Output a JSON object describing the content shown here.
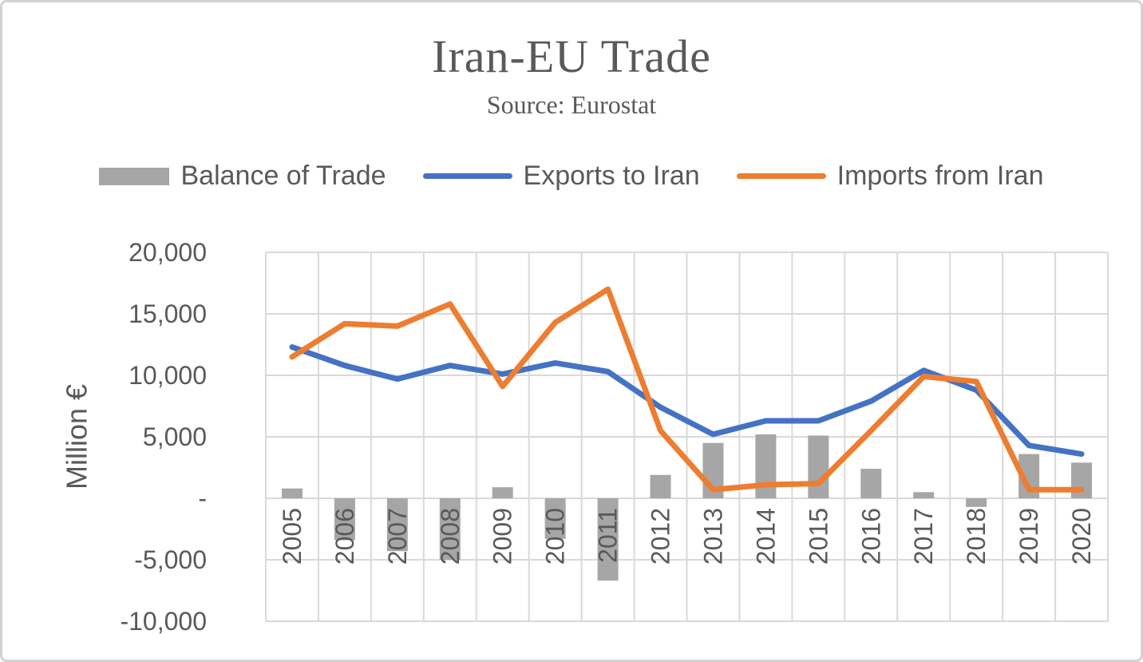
{
  "chart_data": {
    "type": "combo",
    "title": "Iran-EU Trade",
    "subtitle": "Source: Eurostat",
    "xlabel": "",
    "ylabel": "Million €",
    "ylim": [
      -10000,
      20000
    ],
    "grid": true,
    "legend_position": "top",
    "categories": [
      "2005",
      "2006",
      "2007",
      "2008",
      "2009",
      "2010",
      "2011",
      "2012",
      "2013",
      "2014",
      "2015",
      "2016",
      "2017",
      "2018",
      "2019",
      "2020"
    ],
    "y_ticks": [
      {
        "value": 20000,
        "label": "20,000"
      },
      {
        "value": 15000,
        "label": "15,000"
      },
      {
        "value": 10000,
        "label": "10,000"
      },
      {
        "value": 5000,
        "label": "5,000"
      },
      {
        "value": 0,
        "label": "-"
      },
      {
        "value": -5000,
        "label": "-5,000"
      },
      {
        "value": -10000,
        "label": "-10,000"
      }
    ],
    "series": [
      {
        "name": "Balance of Trade",
        "type": "bar",
        "color": "#a6a6a6",
        "values": [
          800,
          -3400,
          -4300,
          -5000,
          900,
          -3300,
          -6700,
          1900,
          4500,
          5200,
          5100,
          2400,
          500,
          -700,
          3600,
          2900
        ]
      },
      {
        "name": "Exports to Iran",
        "type": "line",
        "color": "#4472c4",
        "values": [
          12300,
          10800,
          9700,
          10800,
          10100,
          11000,
          10300,
          7400,
          5200,
          6300,
          6300,
          7900,
          10400,
          8800,
          4300,
          3600
        ]
      },
      {
        "name": "Imports from Iran",
        "type": "line",
        "color": "#ed7d31",
        "values": [
          11500,
          14200,
          14000,
          15800,
          9100,
          14300,
          17000,
          5500,
          700,
          1100,
          1200,
          5500,
          9900,
          9500,
          700,
          700
        ]
      }
    ],
    "colors": {
      "text": "#595959",
      "gridline": "#d9d9d9",
      "background": "#ffffff",
      "border": "#d2d2d2"
    }
  }
}
